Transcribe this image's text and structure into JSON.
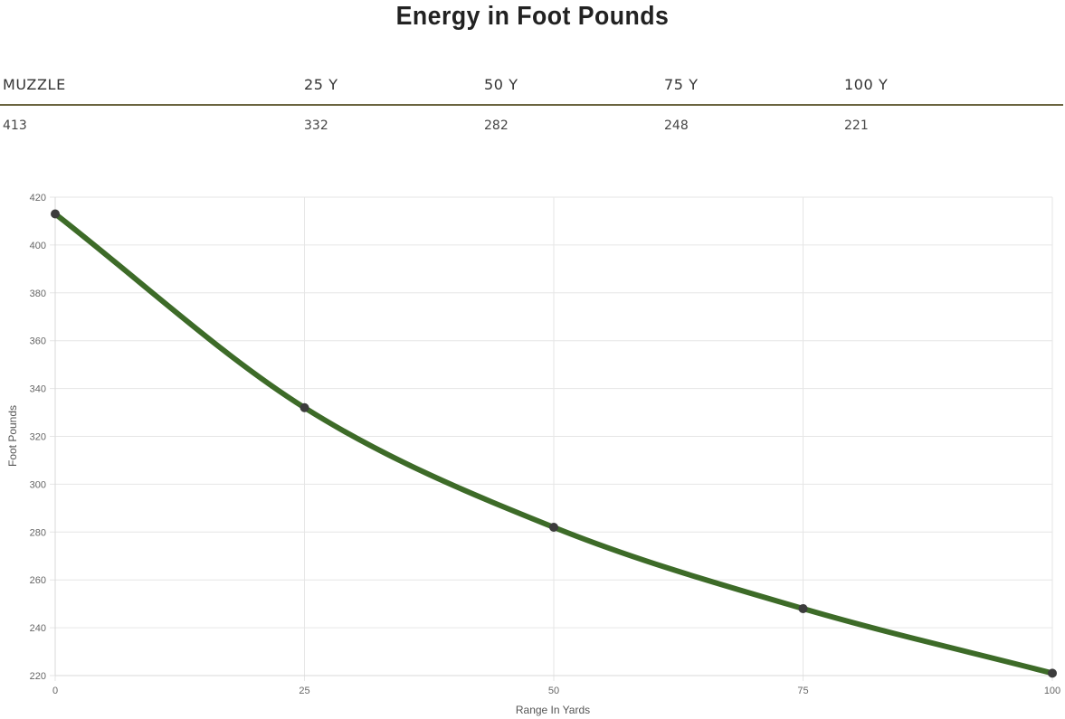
{
  "page": {
    "title": "Energy in Foot Pounds"
  },
  "table": {
    "headers": [
      "MUZZLE",
      "25 Y",
      "50 Y",
      "75 Y",
      "100 Y"
    ],
    "values": [
      "413",
      "332",
      "282",
      "248",
      "221"
    ]
  },
  "chart_data": {
    "type": "line",
    "x": [
      0,
      25,
      50,
      75,
      100
    ],
    "series": [
      {
        "values": [
          413,
          332,
          282,
          248,
          221
        ]
      }
    ],
    "xlabel": "Range In Yards",
    "ylabel": "Foot Pounds",
    "xlim": [
      0,
      100
    ],
    "ylim": [
      220,
      420
    ],
    "x_ticks": [
      0,
      25,
      50,
      75,
      100
    ],
    "y_ticks": [
      220,
      240,
      260,
      280,
      300,
      320,
      340,
      360,
      380,
      400,
      420
    ],
    "grid": true,
    "line_color": "#3d6b28",
    "point_color": "#3c3c3c",
    "grid_color": "#e6e6e6"
  }
}
